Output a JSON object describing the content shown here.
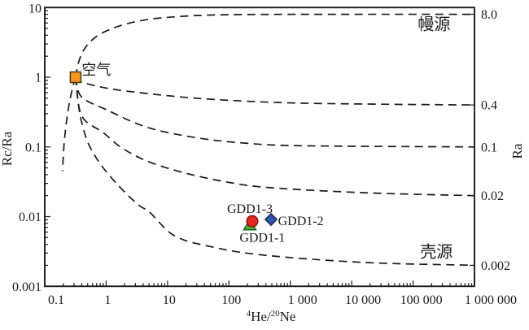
{
  "chart_data": {
    "type": "line",
    "title": "",
    "xlabel_text": "4He/20Ne",
    "xlabel_parts": [
      {
        "t": "4",
        "sup": true
      },
      {
        "t": "He/",
        "sup": false
      },
      {
        "t": "20",
        "sup": true
      },
      {
        "t": "Ne",
        "sup": false
      }
    ],
    "ylabel_left": "Rc/Ra",
    "ylabel_right": "Ra",
    "xscale": "log",
    "yscale": "log",
    "xlim": [
      0.1,
      1000000
    ],
    "ylim": [
      0.001,
      10
    ],
    "grid": false,
    "x_ticks": [
      {
        "v": 0.1,
        "label": "0.1"
      },
      {
        "v": 1,
        "label": "1"
      },
      {
        "v": 10,
        "label": "10"
      },
      {
        "v": 100,
        "label": "100"
      },
      {
        "v": 1000,
        "label": "1 000"
      },
      {
        "v": 10000,
        "label": "10 000"
      },
      {
        "v": 100000,
        "label": "100 000"
      },
      {
        "v": 1000000,
        "label": "1 000 000"
      }
    ],
    "y_ticks_left": [
      {
        "v": 10,
        "label": "10"
      },
      {
        "v": 1,
        "label": "1"
      },
      {
        "v": 0.1,
        "label": "0.1"
      },
      {
        "v": 0.01,
        "label": "0.01"
      },
      {
        "v": 0.001,
        "label": "0.001"
      }
    ],
    "y_ticks_right": [
      {
        "v": 8.0,
        "label": "8.0"
      },
      {
        "v": 0.4,
        "label": "0.4"
      },
      {
        "v": 0.1,
        "label": "0.1"
      },
      {
        "v": 0.02,
        "label": "0.02"
      },
      {
        "v": 0.002,
        "label": "0.002"
      }
    ],
    "air_point": {
      "x": 0.318,
      "R": 1,
      "label": "空气",
      "marker": "square",
      "color": "#F7941E",
      "edge": "#4a3a10"
    },
    "end_member_labels": {
      "mantle": "幔源",
      "crust": "壳源"
    },
    "mixing_curves": [
      {
        "name": "air-mantle",
        "asymptote_Ra": 8.0,
        "points": [
          [
            0.318,
            1
          ],
          [
            0.36,
            1.7
          ],
          [
            0.45,
            2.6
          ],
          [
            0.63,
            3.6
          ],
          [
            1.0,
            4.6
          ],
          [
            2.1,
            5.8
          ],
          [
            5.2,
            6.8
          ],
          [
            18,
            7.5
          ],
          [
            70,
            7.85
          ],
          [
            500,
            7.97
          ],
          [
            10000,
            8.0
          ],
          [
            1000000,
            8.0
          ]
        ]
      },
      {
        "name": "air-dilution-left",
        "asymptote_Ra": null,
        "points": [
          [
            0.318,
            1
          ],
          [
            0.3,
            0.85
          ],
          [
            0.26,
            0.5
          ],
          [
            0.23,
            0.26
          ],
          [
            0.21,
            0.13
          ],
          [
            0.2,
            0.07
          ],
          [
            0.195,
            0.045
          ]
        ]
      },
      {
        "name": "mix-0.4",
        "asymptote_Ra": 0.4,
        "points": [
          [
            0.318,
            1
          ],
          [
            0.4,
            0.85
          ],
          [
            1.0,
            0.7
          ],
          [
            3.0,
            0.61
          ],
          [
            22,
            0.51
          ],
          [
            170,
            0.455
          ],
          [
            1500,
            0.425
          ],
          [
            30000,
            0.41
          ],
          [
            1000000,
            0.4
          ]
        ]
      },
      {
        "name": "mix-0.1",
        "asymptote_Ra": 0.1,
        "points": [
          [
            0.318,
            1
          ],
          [
            0.4,
            0.52
          ],
          [
            1.1,
            0.33
          ],
          [
            3.0,
            0.22
          ],
          [
            8,
            0.168
          ],
          [
            38,
            0.131
          ],
          [
            170,
            0.114
          ],
          [
            1500,
            0.104
          ],
          [
            1000000,
            0.1
          ]
        ]
      },
      {
        "name": "mix-0.02",
        "asymptote_Ra": 0.02,
        "points": [
          [
            0.318,
            1
          ],
          [
            0.4,
            0.28
          ],
          [
            0.9,
            0.16
          ],
          [
            1.8,
            0.097
          ],
          [
            5,
            0.061
          ],
          [
            22,
            0.041
          ],
          [
            100,
            0.031
          ],
          [
            470,
            0.026
          ],
          [
            16000,
            0.022
          ],
          [
            1000000,
            0.02
          ]
        ]
      },
      {
        "name": "air-crust",
        "asymptote_Ra": 0.002,
        "points": [
          [
            0.318,
            1
          ],
          [
            0.36,
            0.36
          ],
          [
            0.42,
            0.19
          ],
          [
            0.53,
            0.105
          ],
          [
            0.84,
            0.054
          ],
          [
            1.64,
            0.027
          ],
          [
            3.3,
            0.0149
          ],
          [
            5.2,
            0.0114
          ],
          [
            13,
            0.0053
          ],
          [
            51,
            0.0037
          ],
          [
            370,
            0.0028
          ],
          [
            16000,
            0.0022
          ],
          [
            1000000,
            0.002
          ]
        ]
      }
    ],
    "series": [
      {
        "name": "GDD1-1",
        "marker": "triangle",
        "color": "#4AAB3D",
        "edge": "#1e641e",
        "x": 219,
        "Rc_Ra": 0.0075
      },
      {
        "name": "GDD1-3",
        "marker": "circle",
        "color": "#E5271D",
        "edge": "#8f1410",
        "x": 240,
        "Rc_Ra": 0.0086
      },
      {
        "name": "GDD1-2",
        "marker": "diamond",
        "color": "#2F55A4",
        "edge": "#1b2e63",
        "x": 485,
        "Rc_Ra": 0.0091
      }
    ],
    "annotations": [
      {
        "text": "空气",
        "x": 0.4,
        "R": 1.27,
        "anchor": "start",
        "size": 18,
        "cjk": true
      },
      {
        "text": "幔源",
        "x": 220000,
        "R": 5.7,
        "anchor": "middle",
        "size": 20,
        "cjk": true
      },
      {
        "text": "壳源",
        "x": 240000,
        "R": 0.0031,
        "anchor": "middle",
        "size": 20,
        "cjk": true
      },
      {
        "text": "GDD1-3",
        "x": 219,
        "R": 0.0129,
        "anchor": "middle",
        "size": 16,
        "cjk": false
      },
      {
        "text": "GDD1-2",
        "x": 630,
        "R": 0.0086,
        "anchor": "start",
        "size": 16,
        "cjk": false
      },
      {
        "text": "GDD1-1",
        "x": 350,
        "R": 0.005,
        "anchor": "middle",
        "size": 16,
        "cjk": false
      }
    ],
    "line_style": {
      "color": "#1a1a1a",
      "dash": [
        10,
        6.5
      ],
      "width": 1.7
    },
    "frame_color": "#1a1a1a"
  }
}
